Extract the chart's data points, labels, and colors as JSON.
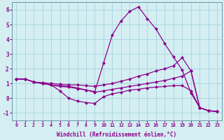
{
  "xlabel": "Windchill (Refroidissement éolien,°C)",
  "background_color": "#d4eef2",
  "line_color": "#8b008b",
  "xlim": [
    -0.5,
    23.5
  ],
  "ylim": [
    -1.5,
    6.5
  ],
  "yticks": [
    -1,
    0,
    1,
    2,
    3,
    4,
    5,
    6
  ],
  "xticks": [
    0,
    1,
    2,
    3,
    4,
    5,
    6,
    7,
    8,
    9,
    10,
    11,
    12,
    13,
    14,
    15,
    16,
    17,
    18,
    19,
    20,
    21,
    22,
    23
  ],
  "series": [
    {
      "x": [
        0,
        1,
        2,
        3,
        4,
        5,
        6,
        7,
        8,
        9,
        10,
        11,
        12,
        13,
        14,
        15,
        16,
        17,
        18,
        19,
        20,
        21,
        22,
        23
      ],
      "y": [
        1.3,
        1.3,
        1.1,
        1.0,
        0.9,
        0.85,
        0.8,
        0.7,
        0.55,
        0.45,
        2.4,
        4.3,
        5.25,
        5.9,
        6.2,
        5.4,
        4.7,
        3.7,
        2.8,
        1.9,
        0.35,
        -0.65,
        -0.85,
        -0.9
      ]
    },
    {
      "x": [
        0,
        1,
        2,
        3,
        4,
        5,
        6,
        7,
        8,
        9,
        10,
        11,
        12,
        13,
        14,
        15,
        16,
        17,
        18,
        19,
        20,
        21,
        22,
        23
      ],
      "y": [
        1.3,
        1.3,
        1.1,
        1.05,
        1.0,
        0.95,
        0.9,
        0.9,
        0.85,
        0.8,
        0.9,
        1.0,
        1.15,
        1.3,
        1.5,
        1.65,
        1.85,
        2.0,
        2.2,
        2.75,
        1.85,
        -0.65,
        -0.85,
        -0.9
      ]
    },
    {
      "x": [
        0,
        1,
        2,
        3,
        4,
        5,
        6,
        7,
        8,
        9,
        10,
        11,
        12,
        13,
        14,
        15,
        16,
        17,
        18,
        19,
        20,
        21,
        22,
        23
      ],
      "y": [
        1.3,
        1.3,
        1.1,
        1.0,
        0.9,
        0.8,
        0.75,
        0.65,
        0.55,
        0.4,
        0.5,
        0.6,
        0.7,
        0.8,
        0.9,
        1.0,
        1.1,
        1.2,
        1.35,
        1.5,
        1.85,
        -0.65,
        -0.85,
        -0.9
      ]
    },
    {
      "x": [
        0,
        1,
        2,
        3,
        4,
        5,
        6,
        7,
        8,
        9,
        10,
        11,
        12,
        13,
        14,
        15,
        16,
        17,
        18,
        19,
        20,
        21,
        22,
        23
      ],
      "y": [
        1.3,
        1.3,
        1.1,
        1.0,
        0.9,
        0.5,
        0.0,
        -0.2,
        -0.3,
        -0.35,
        0.1,
        0.3,
        0.4,
        0.55,
        0.6,
        0.7,
        0.75,
        0.8,
        0.85,
        0.85,
        0.5,
        -0.65,
        -0.85,
        -0.9
      ]
    }
  ]
}
